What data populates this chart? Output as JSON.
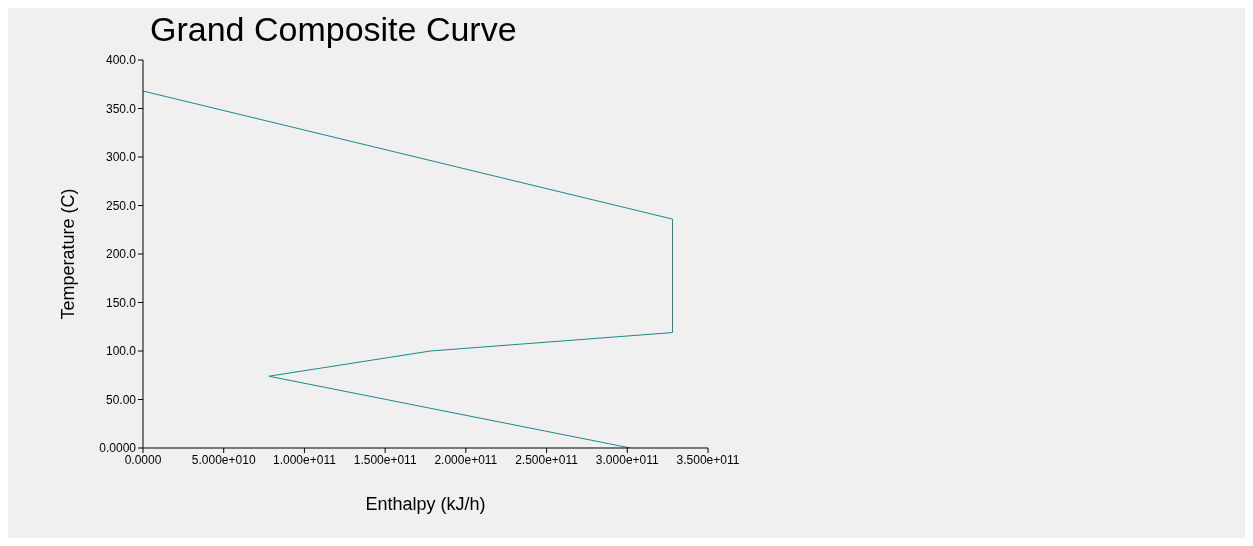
{
  "chart_data": {
    "type": "line",
    "title": "Grand Composite Curve",
    "xlabel": "Enthalpy (kJ/h)",
    "ylabel": "Temperature (C)",
    "x": [
      0,
      328000000000,
      328000000000,
      178000000000,
      78000000000,
      302000000000
    ],
    "series": [
      {
        "color": "#1a8a8a",
        "values": [
          368,
          236,
          119,
          100,
          74,
          0
        ]
      }
    ],
    "xlim": [
      0,
      350000000000
    ],
    "xticks": [
      {
        "value": 0,
        "label": "0.0000"
      },
      {
        "value": 50000000000,
        "label": "5.000e+010"
      },
      {
        "value": 100000000000,
        "label": "1.000e+011"
      },
      {
        "value": 150000000000,
        "label": "1.500e+011"
      },
      {
        "value": 200000000000,
        "label": "2.000e+011"
      },
      {
        "value": 250000000000,
        "label": "2.500e+011"
      },
      {
        "value": 300000000000,
        "label": "3.000e+011"
      },
      {
        "value": 350000000000,
        "label": "3.500e+011"
      }
    ],
    "ylim": [
      0,
      400
    ],
    "yticks": [
      {
        "value": 0,
        "label": "0.0000"
      },
      {
        "value": 50,
        "label": "50.00"
      },
      {
        "value": 100,
        "label": "100.0"
      },
      {
        "value": 150,
        "label": "150.0"
      },
      {
        "value": 200,
        "label": "200.0"
      },
      {
        "value": 250,
        "label": "250.0"
      },
      {
        "value": 300,
        "label": "300.0"
      },
      {
        "value": 350,
        "label": "350.0"
      },
      {
        "value": 400,
        "label": "400.0"
      }
    ],
    "grid": false,
    "legend": false,
    "line_style": "solid"
  }
}
